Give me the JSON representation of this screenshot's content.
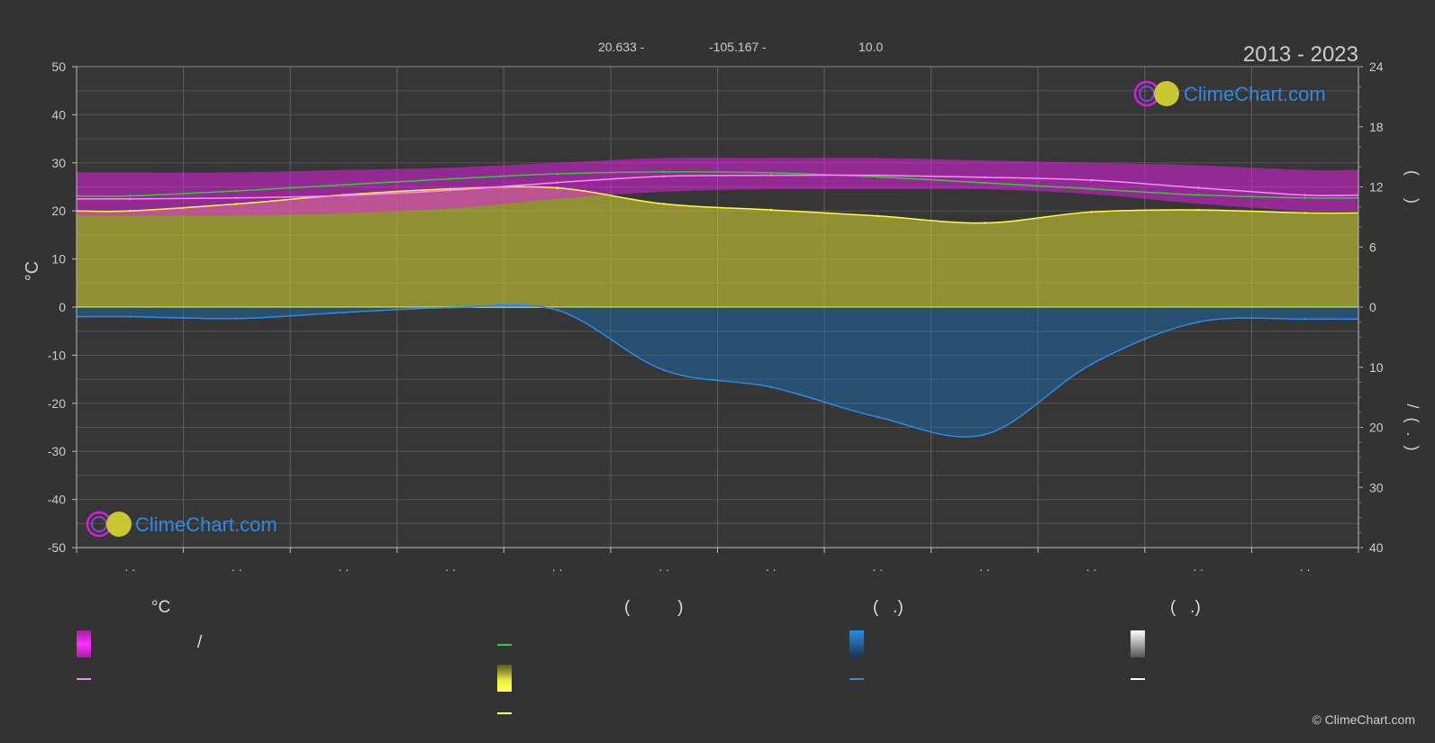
{
  "header": {
    "lat": "20.633 -",
    "lon": "-105.167 -",
    "elev": "10.0",
    "period": "2013 - 2023",
    "brand": "ClimeChart.com"
  },
  "legend": {
    "col1_head": "°C",
    "col1_sep": "/",
    "col2_head": "(          )",
    "col3_head": "(   .)",
    "col4_head": "(   .)"
  },
  "copyright": "© ClimeChart.com",
  "colors": {
    "background": "#333333",
    "grid": "#5a5a5a",
    "temp_band": "#e020e0",
    "temp_mean": "#ff88ff",
    "daylight": "#33cc33",
    "sunshine_band": "#c8c832",
    "sunshine_mean": "#ffff44",
    "rain_band": "#1a6fb5",
    "rain_mean": "#2b8ce6",
    "snow": "#ffffff"
  },
  "chart_data": {
    "type": "line",
    "x_tick_labels": [
      ". .",
      ". .",
      ". .",
      ". .",
      ". .",
      ". .",
      ". .",
      ". .",
      ". .",
      ". .",
      ". .",
      ". ."
    ],
    "left_axis": {
      "label": "°C",
      "min": -50,
      "max": 50,
      "ticks": [
        50,
        40,
        30,
        20,
        10,
        0,
        -10,
        -20,
        -30,
        -40,
        -50
      ]
    },
    "right_axis_top": {
      "label": "(     )",
      "min": 0,
      "max": 24,
      "ticks": [
        24,
        18,
        12,
        6,
        0
      ]
    },
    "right_axis_bottom": {
      "label": "/  (  .  )",
      "min": 0,
      "max": 40,
      "ticks": [
        0,
        10,
        20,
        30,
        40
      ]
    },
    "series": [
      {
        "key": "daylight",
        "axis": "hours",
        "values": [
          11.1,
          11.6,
          12.2,
          12.8,
          13.3,
          13.5,
          13.4,
          13.0,
          12.4,
          11.8,
          11.2,
          10.9
        ]
      },
      {
        "key": "sunshine",
        "axis": "hours",
        "values": [
          9.6,
          10.3,
          11.2,
          11.8,
          11.9,
          10.3,
          9.7,
          9.1,
          8.4,
          9.5,
          9.7,
          9.4
        ]
      },
      {
        "key": "temp_mean",
        "axis": "celsius",
        "values": [
          22.5,
          22.7,
          23.2,
          24.3,
          25.9,
          27.2,
          27.4,
          27.4,
          27.0,
          26.4,
          24.8,
          23.3
        ]
      },
      {
        "key": "precipitation",
        "axis": "mm",
        "values": [
          1.6,
          1.9,
          0.9,
          0.1,
          0.5,
          10.5,
          13.3,
          18.3,
          21.2,
          9.5,
          2.5,
          2.0
        ]
      },
      {
        "key": "temp_band",
        "min": [
          19.0,
          19.0,
          19.5,
          20.5,
          22.5,
          24.0,
          24.5,
          24.5,
          24.5,
          23.5,
          21.5,
          20.0
        ],
        "max": [
          28.0,
          28.0,
          28.5,
          29.0,
          30.0,
          31.0,
          31.0,
          31.0,
          30.5,
          30.0,
          29.5,
          28.5
        ]
      }
    ]
  }
}
